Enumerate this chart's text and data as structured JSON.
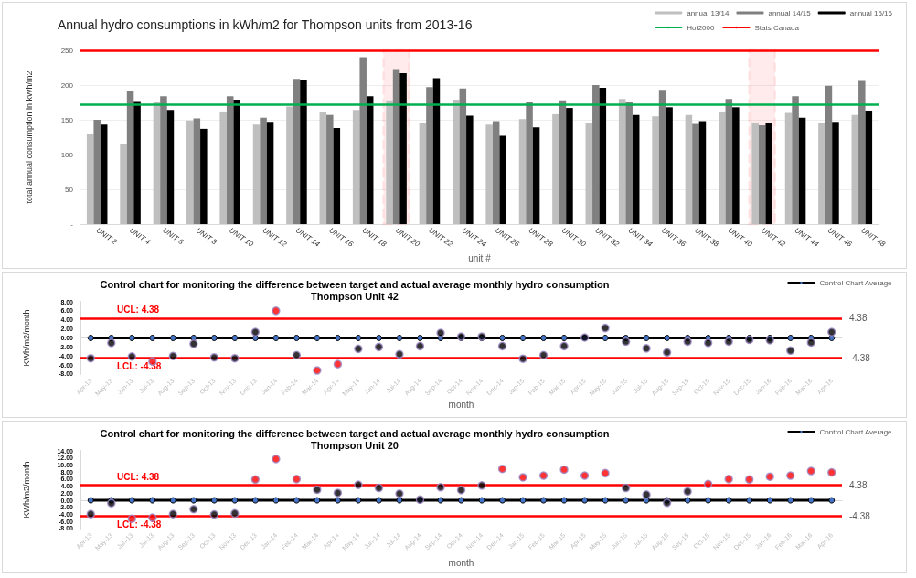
{
  "chart_data": [
    {
      "type": "bar",
      "title": "Annual hydro consumptions in kWh/m2 for Thompson units from 2013-16",
      "xlabel": "unit #",
      "ylabel": "total annual consumption in kWh/m2",
      "categories": [
        "UNIT 2",
        "UNIT 4",
        "UNIT 6",
        "UNIT 8",
        "UNIT 10",
        "UNIT 12",
        "UNIT 14",
        "UNIT 16",
        "UNIT 18",
        "UNIT 20",
        "UNIT 22",
        "UNIT 24",
        "UNIT 26",
        "UNIT 28",
        "UNIT 30",
        "UNIT 32",
        "UNIT 34",
        "UNIT 36",
        "UNIT 38",
        "UNIT 40",
        "UNIT 42",
        "UNIT 44",
        "UNIT 46",
        "UNIT 48"
      ],
      "series": [
        {
          "name": "annual 13/14",
          "color": "#bfbfbf",
          "values": [
            130,
            115,
            176,
            149,
            162,
            143,
            169,
            162,
            164,
            178,
            145,
            179,
            143,
            151,
            158,
            145,
            180,
            155,
            157,
            162,
            146,
            160,
            146,
            157
          ]
        },
        {
          "name": "annual 14/15",
          "color": "#808080",
          "values": [
            150,
            191,
            184,
            152,
            184,
            153,
            209,
            157,
            240,
            223,
            197,
            195,
            148,
            176,
            178,
            200,
            176,
            193,
            144,
            180,
            142,
            184,
            199,
            206
          ]
        },
        {
          "name": "annual 15/16",
          "color": "#000000",
          "values": [
            143,
            177,
            164,
            137,
            179,
            147,
            208,
            138,
            184,
            217,
            210,
            156,
            127,
            139,
            167,
            196,
            157,
            168,
            148,
            168,
            145,
            153,
            147,
            163
          ]
        }
      ],
      "ylim": [
        0,
        250
      ],
      "yticks": [
        {
          "value": 0,
          "label": "-"
        },
        50,
        100,
        150,
        200,
        250
      ],
      "grid": "y",
      "legend": "top right",
      "ref_lines": [
        {
          "axis": "y",
          "value": 172,
          "label": "Hot2000",
          "color": "#00b050"
        },
        {
          "axis": "y",
          "value": 250,
          "label": "Stats Canada",
          "color": "#ff0000"
        }
      ],
      "bands": [
        {
          "axis": "x",
          "from": "UNIT 20",
          "to": "UNIT 20",
          "color": "#ff0000"
        },
        {
          "axis": "x",
          "from": "UNIT 42",
          "to": "UNIT 42",
          "color": "#ff0000"
        }
      ]
    },
    {
      "type": "scatter",
      "title": "Control chart for monitoring the difference between target and actual average monthly hydro consumption",
      "subtitle": "Thompson Unit 42",
      "xlabel": "month",
      "ylabel": "KWh/m2/month",
      "categories": [
        "Apr-13",
        "May-13",
        "Jun-13",
        "Jul-13",
        "Aug-13",
        "Sep-13",
        "Oct-13",
        "Nov-13",
        "Dec-13",
        "Jan-14",
        "Feb-14",
        "Mar-14",
        "Apr-14",
        "May-14",
        "Jun-14",
        "Jul-14",
        "Aug-14",
        "Sep-14",
        "Oct-14",
        "Nov-14",
        "Dec-14",
        "Jan-15",
        "Feb-15",
        "Mar-15",
        "Apr-15",
        "May-15",
        "Jun-15",
        "Jul-15",
        "Aug-15",
        "Sep-15",
        "Oct-15",
        "Nov-15",
        "Dec-15",
        "Jan-16",
        "Feb-16",
        "Mar-16",
        "Apr-16"
      ],
      "series": [
        {
          "name": "Control Chart Average",
          "type": "line",
          "color": "#000000",
          "values": [
            0,
            0,
            0,
            0,
            0,
            0,
            0,
            0,
            0,
            0,
            0,
            0,
            0,
            0,
            0,
            0,
            0,
            0,
            0,
            0,
            0,
            0,
            0,
            0,
            0,
            0,
            0,
            0,
            0,
            0,
            0,
            0,
            0,
            0,
            0,
            0,
            0
          ]
        },
        {
          "type": "scatter",
          "values": [
            -4.5,
            -1.1,
            -4.1,
            -5.2,
            -4.0,
            -1.3,
            -4.3,
            -4.5,
            1.3,
            6.0,
            -3.8,
            -7.2,
            -5.8,
            -2.4,
            -2.0,
            -3.6,
            -1.8,
            1.1,
            0.3,
            0.3,
            -1.8,
            -4.6,
            -3.8,
            -1.8,
            0.1,
            2.2,
            -0.8,
            -2.3,
            -3.2,
            -0.8,
            -1.1,
            -0.8,
            -0.4,
            -0.5,
            -2.8,
            -1.0,
            1.3
          ],
          "colors": [
            "#000000",
            "#000000",
            "#000000",
            "#ff0000",
            "#000000",
            "#000000",
            "#000000",
            "#000000",
            "#000000",
            "#ff0000",
            "#000000",
            "#ff0000",
            "#ff0000",
            "#000000",
            "#000000",
            "#000000",
            "#000000",
            "#000000",
            "#000000",
            "#000000",
            "#000000",
            "#000000",
            "#000000",
            "#000000",
            "#000000",
            "#000000",
            "#000000",
            "#000000",
            "#000000",
            "#000000",
            "#000000",
            "#000000",
            "#000000",
            "#000000",
            "#000000",
            "#000000",
            "#000000"
          ]
        }
      ],
      "ylim": [
        -8,
        8
      ],
      "yticks": [
        {
          "value": -8,
          "label": "-8.00"
        },
        {
          "value": -6,
          "label": "-6.00"
        },
        {
          "value": -4,
          "label": "-4.00"
        },
        {
          "value": -2,
          "label": "-2.00"
        },
        {
          "value": 0,
          "label": "0.00"
        },
        {
          "value": 2,
          "label": "2.00"
        },
        {
          "value": 4,
          "label": "4.00"
        },
        {
          "value": 6,
          "label": "6.00"
        },
        {
          "value": 8,
          "label": "8.00"
        }
      ],
      "legend": "top right",
      "marker": "circle",
      "annotations": [
        "4.38",
        "-4.38"
      ],
      "ref_lines": [
        {
          "axis": "y",
          "value": 4.38,
          "label": "UCL: 4.38",
          "color": "#ff0000"
        },
        {
          "axis": "y",
          "value": -4.38,
          "label": "LCL: -4.38",
          "color": "#ff0000"
        }
      ]
    },
    {
      "type": "scatter",
      "title": "Control chart for monitoring the difference between target and actual average monthly hydro consumption",
      "subtitle": "Thompson Unit 20",
      "xlabel": "month",
      "ylabel": "KWh/m2/month",
      "categories": [
        "Apr-13",
        "May-13",
        "Jun-13",
        "Jul-13",
        "Aug-13",
        "Sep-13",
        "Oct-13",
        "Nov-13",
        "Dec-13",
        "Jan-14",
        "Feb-14",
        "Mar-14",
        "Apr-14",
        "May-14",
        "Jun-14",
        "Jul-14",
        "Aug-14",
        "Sep-14",
        "Oct-14",
        "Nov-14",
        "Dec-14",
        "Jan-15",
        "Feb-15",
        "Mar-15",
        "Apr-15",
        "May-15",
        "Jun-15",
        "Jul-15",
        "Aug-15",
        "Sep-15",
        "Oct-15",
        "Nov-15",
        "Dec-15",
        "Jan-16",
        "Feb-16",
        "Mar-16",
        "Apr-16"
      ],
      "series": [
        {
          "name": "Control Chart Average",
          "type": "line",
          "color": "#000000",
          "values": [
            0,
            0,
            0,
            0,
            0,
            0,
            0,
            0,
            0,
            0,
            0,
            0,
            0,
            0,
            0,
            0,
            0,
            0,
            0,
            0,
            0,
            0,
            0,
            0,
            0,
            0,
            0,
            0,
            0,
            0,
            0,
            0,
            0,
            0,
            0,
            0,
            0
          ]
        },
        {
          "type": "scatter",
          "values": [
            -3.9,
            -0.8,
            -5.2,
            -4.9,
            -3.9,
            -2.5,
            -4.0,
            -3.7,
            5.9,
            11.7,
            6.0,
            3.0,
            2.1,
            4.4,
            3.5,
            1.9,
            0.2,
            3.7,
            2.9,
            4.2,
            8.9,
            6.5,
            7.0,
            8.7,
            7.0,
            7.7,
            3.5,
            1.6,
            -0.7,
            2.5,
            4.6,
            6.0,
            5.9,
            6.7,
            7.0,
            8.3,
            7.9
          ],
          "colors": [
            "#000000",
            "#000000",
            "#ff0000",
            "#ff0000",
            "#000000",
            "#000000",
            "#000000",
            "#000000",
            "#ff0000",
            "#ff0000",
            "#ff0000",
            "#000000",
            "#000000",
            "#000000",
            "#000000",
            "#000000",
            "#000000",
            "#000000",
            "#000000",
            "#000000",
            "#ff0000",
            "#ff0000",
            "#ff0000",
            "#ff0000",
            "#ff0000",
            "#ff0000",
            "#000000",
            "#000000",
            "#000000",
            "#000000",
            "#ff0000",
            "#ff0000",
            "#ff0000",
            "#ff0000",
            "#ff0000",
            "#ff0000",
            "#ff0000"
          ]
        }
      ],
      "ylim": [
        -8,
        14
      ],
      "yticks": [
        {
          "value": -8,
          "label": "-8.00"
        },
        {
          "value": -6,
          "label": "-6.00"
        },
        {
          "value": -4,
          "label": "-4.00"
        },
        {
          "value": -2,
          "label": "-2.00"
        },
        {
          "value": 0,
          "label": "0.00"
        },
        {
          "value": 2,
          "label": "2.00"
        },
        {
          "value": 4,
          "label": "4.00"
        },
        {
          "value": 6,
          "label": "6.00"
        },
        {
          "value": 8,
          "label": "8.00"
        },
        {
          "value": 10,
          "label": "10.00"
        },
        {
          "value": 12,
          "label": "12.00"
        },
        {
          "value": 14,
          "label": "14.00"
        }
      ],
      "legend": "top right",
      "marker": "circle",
      "annotations": [
        "4.38",
        "-4.38"
      ],
      "ref_lines": [
        {
          "axis": "y",
          "value": 4.38,
          "label": "UCL: 4.38",
          "color": "#ff0000"
        },
        {
          "axis": "y",
          "value": -4.38,
          "label": "LCL: -4.38",
          "color": "#ff0000"
        }
      ]
    }
  ]
}
